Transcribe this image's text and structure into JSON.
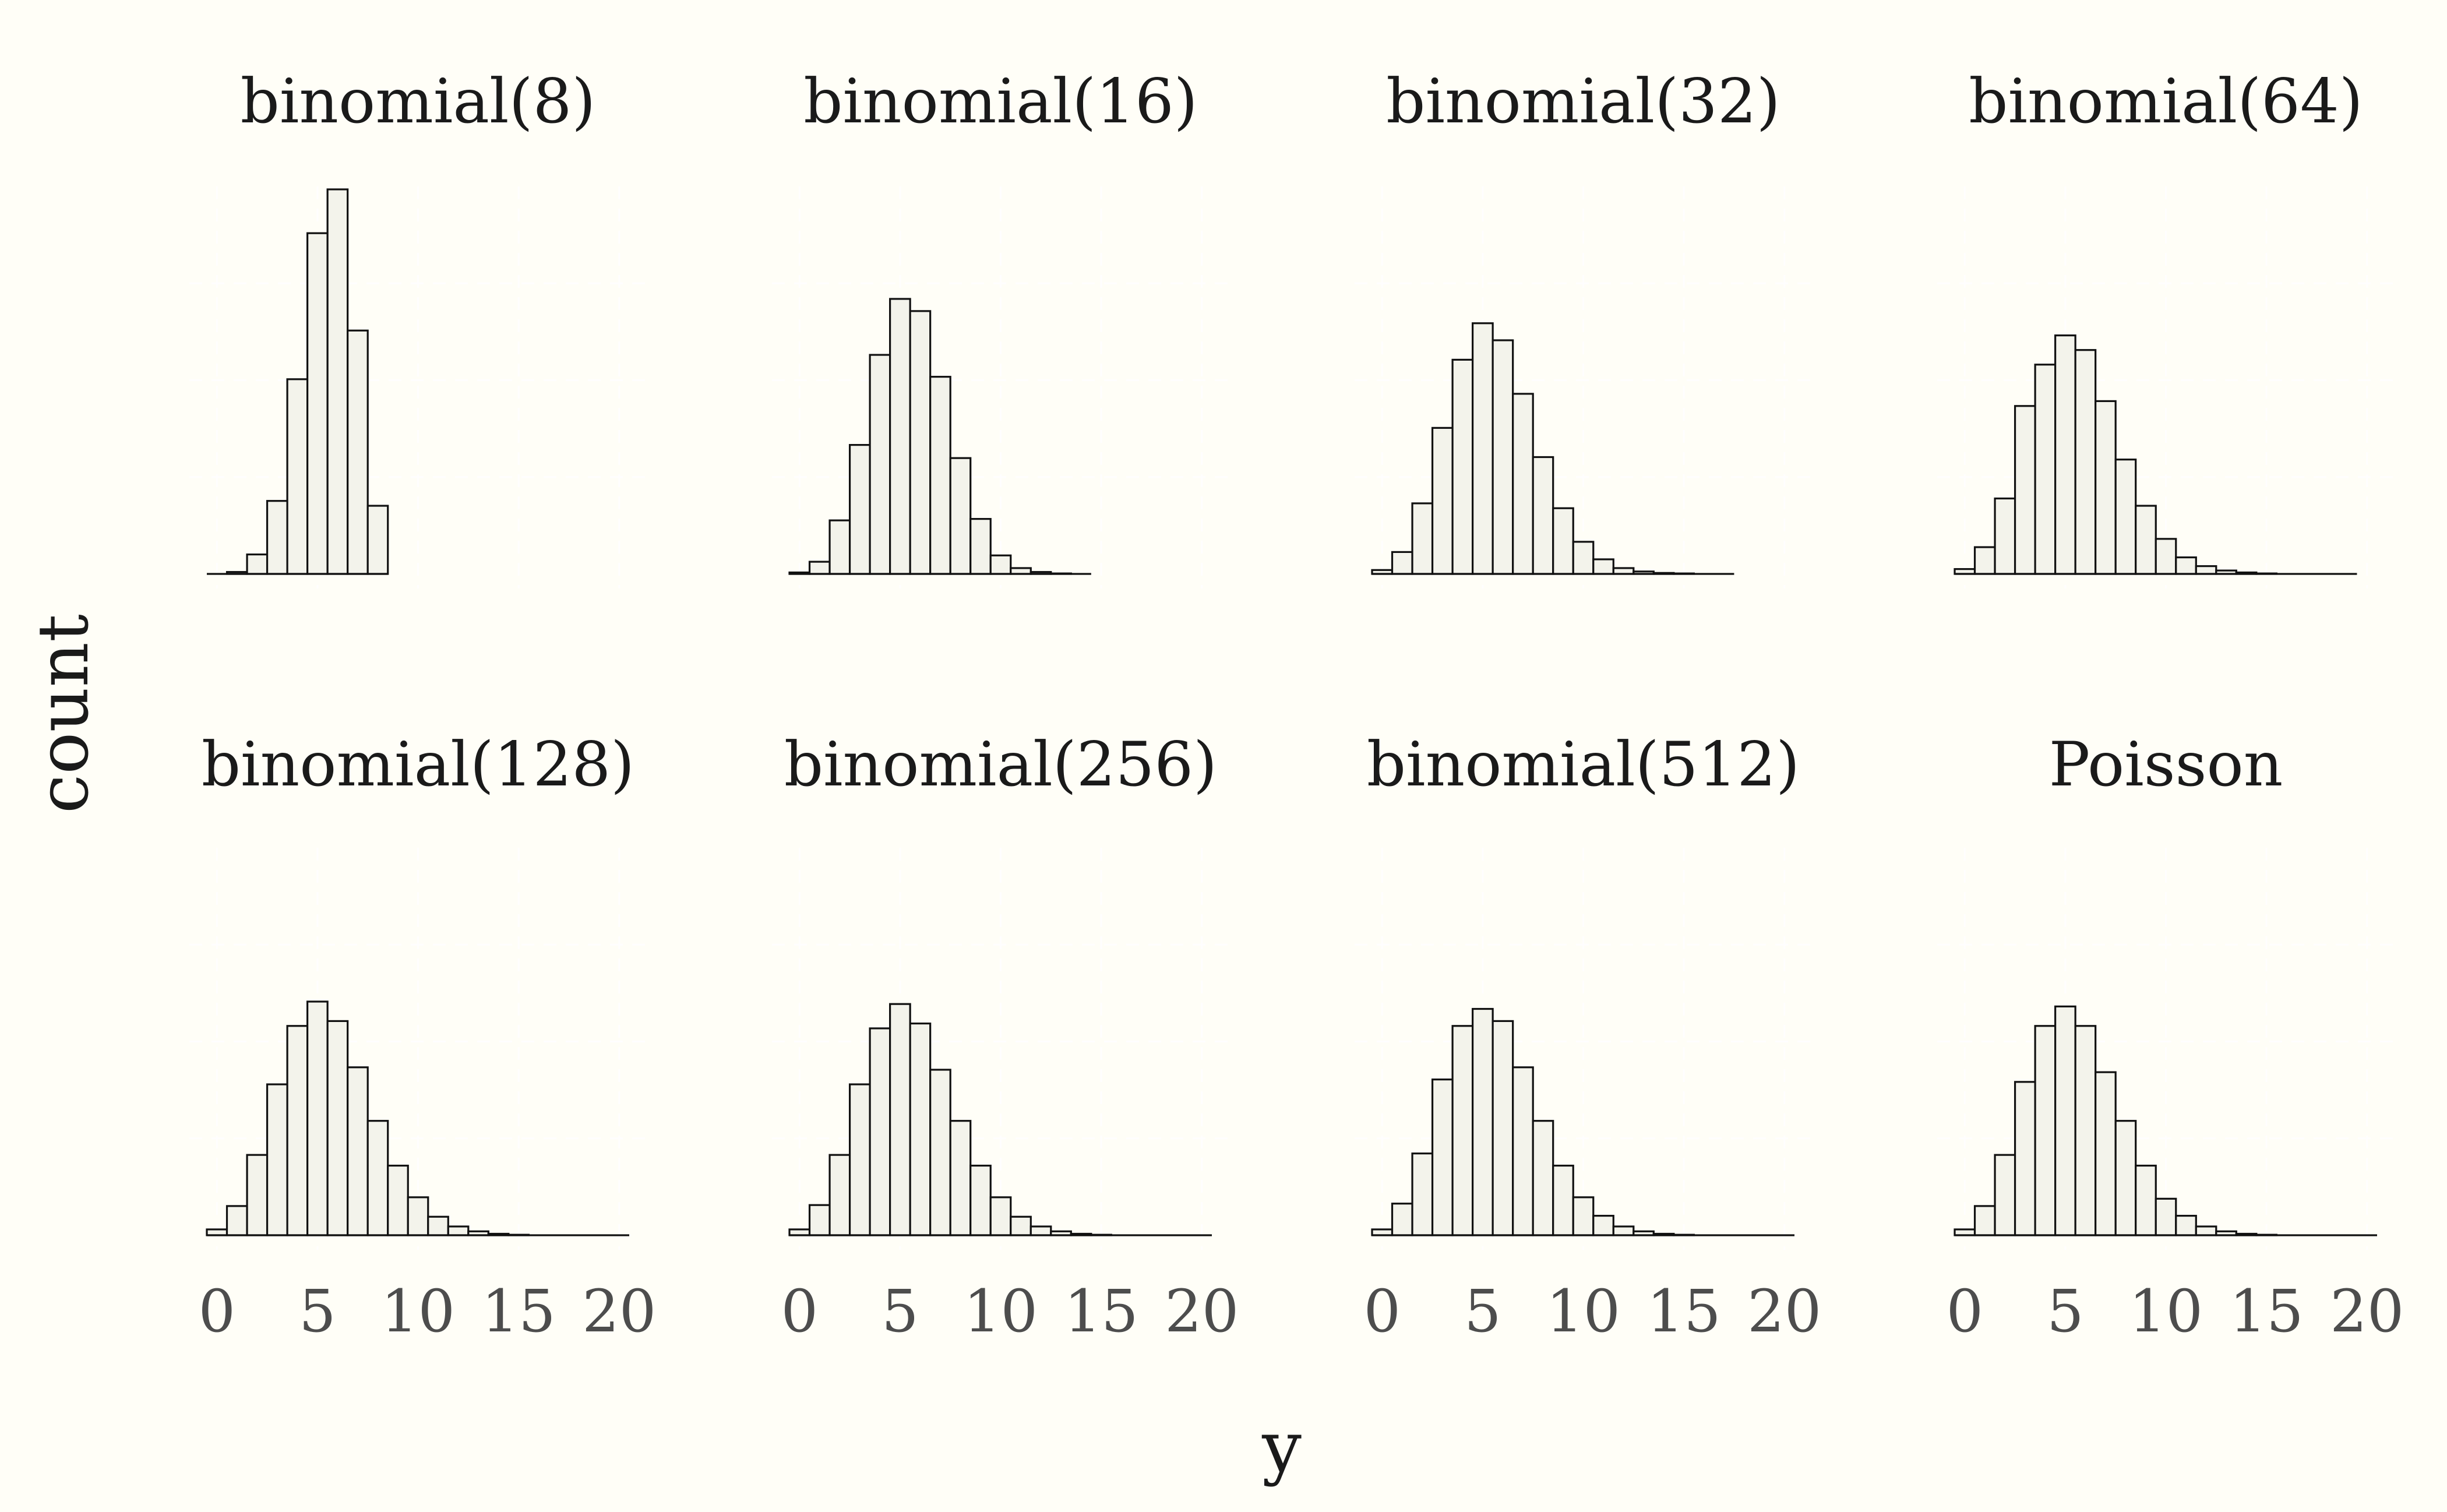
{
  "chart_data": {
    "type": "bar",
    "subtype": "faceted histogram",
    "xlabel": "y",
    "ylabel": "count",
    "xlim": [
      -0.5,
      20.5
    ],
    "x_ticks": [
      "0",
      "5",
      "10",
      "15",
      "20"
    ],
    "y_ticks_shown": false,
    "grid": "faint",
    "layout": "2 rows x 4 columns",
    "panels": [
      {
        "title": "binomial(8)",
        "x": [
          0,
          1,
          2,
          3,
          4,
          5,
          6,
          7,
          8
        ],
        "values": [
          0,
          4,
          40,
          150,
          400,
          700,
          790,
          500,
          140
        ]
      },
      {
        "title": "binomial(16)",
        "x": [
          0,
          1,
          2,
          3,
          4,
          5,
          6,
          7,
          8,
          9,
          10,
          11,
          12,
          13,
          14
        ],
        "values": [
          3,
          25,
          110,
          265,
          450,
          565,
          540,
          405,
          238,
          113,
          38,
          12,
          4,
          1,
          0
        ]
      },
      {
        "title": "binomial(32)",
        "x": [
          0,
          1,
          2,
          3,
          4,
          5,
          6,
          7,
          8,
          9,
          10,
          11,
          12,
          13,
          14,
          15,
          16,
          17
        ],
        "values": [
          8,
          45,
          145,
          300,
          440,
          515,
          480,
          370,
          240,
          135,
          66,
          30,
          12,
          5,
          2,
          1,
          0,
          0
        ]
      },
      {
        "title": "binomial(64)",
        "x": [
          0,
          1,
          2,
          3,
          4,
          5,
          6,
          7,
          8,
          9,
          10,
          11,
          12,
          13,
          14,
          15,
          16,
          17,
          18,
          19
        ],
        "values": [
          10,
          55,
          155,
          345,
          430,
          490,
          460,
          355,
          235,
          140,
          72,
          34,
          16,
          7,
          3,
          1,
          0,
          0,
          0,
          0
        ]
      },
      {
        "title": "binomial(128)",
        "x": [
          0,
          1,
          2,
          3,
          4,
          5,
          6,
          7,
          8,
          9,
          10,
          11,
          12,
          13,
          14,
          15,
          16,
          17,
          18,
          19,
          20
        ],
        "values": [
          12,
          60,
          165,
          310,
          430,
          480,
          440,
          345,
          235,
          143,
          78,
          38,
          18,
          8,
          3,
          1,
          0,
          0,
          0,
          0,
          0
        ]
      },
      {
        "title": "binomial(256)",
        "x": [
          0,
          1,
          2,
          3,
          4,
          5,
          6,
          7,
          8,
          9,
          10,
          11,
          12,
          13,
          14,
          15,
          16,
          17,
          18,
          19,
          20
        ],
        "values": [
          12,
          62,
          165,
          310,
          425,
          475,
          435,
          340,
          235,
          143,
          78,
          38,
          18,
          8,
          3,
          1,
          0,
          0,
          0,
          0,
          0
        ]
      },
      {
        "title": "binomial(512)",
        "x": [
          0,
          1,
          2,
          3,
          4,
          5,
          6,
          7,
          8,
          9,
          10,
          11,
          12,
          13,
          14,
          15,
          16,
          17,
          18,
          19,
          20
        ],
        "values": [
          12,
          65,
          168,
          320,
          430,
          465,
          440,
          345,
          235,
          143,
          78,
          40,
          18,
          8,
          3,
          1,
          0,
          0,
          0,
          0,
          0
        ]
      },
      {
        "title": "Poisson",
        "x": [
          0,
          1,
          2,
          3,
          4,
          5,
          6,
          7,
          8,
          9,
          10,
          11,
          12,
          13,
          14,
          15,
          16,
          17,
          18,
          19,
          20
        ],
        "values": [
          12,
          60,
          165,
          315,
          430,
          470,
          430,
          335,
          235,
          143,
          75,
          40,
          18,
          8,
          3,
          1,
          0,
          0,
          0,
          0,
          0
        ]
      }
    ]
  }
}
